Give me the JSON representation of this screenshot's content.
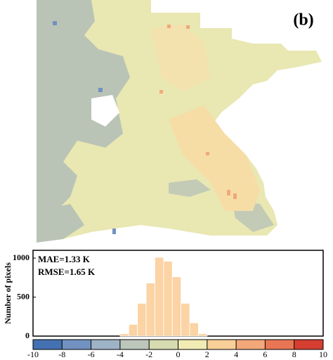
{
  "panel_label": "(b)",
  "chart_data": {
    "type": "histogram",
    "y_label": "Number of pixels",
    "annotations": [
      "MAE=1.33 K",
      "RMSE=1.65 K"
    ],
    "bins": [
      -4,
      -3.4,
      -2.8,
      -2.2,
      -1.6,
      -1.0,
      -0.4,
      0.2,
      0.8,
      1.4,
      2.0
    ],
    "counts": [
      30,
      150,
      420,
      680,
      1010,
      960,
      760,
      420,
      170,
      30
    ],
    "color": "#fbd3a4",
    "xlim": [
      -10,
      10
    ],
    "ylim": [
      0,
      1100
    ],
    "yticks": [
      0,
      500,
      1000
    ],
    "colorbar": {
      "ticks": [
        -10,
        -8,
        -6,
        -4,
        -2,
        0,
        2,
        4,
        6,
        8,
        10
      ],
      "colors": [
        "#4471b2",
        "#7192c0",
        "#9fb3c6",
        "#bcc6bb",
        "#d6dbb0",
        "#f1ebb4",
        "#f8cf98",
        "#f2a878",
        "#e87654",
        "#d53e30"
      ]
    }
  }
}
